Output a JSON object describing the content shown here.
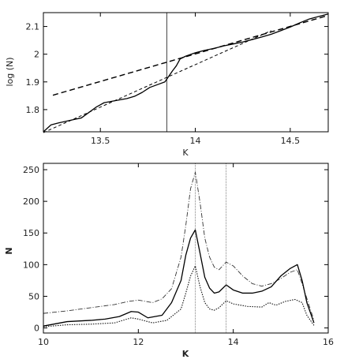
{
  "chart_data": [
    {
      "type": "line",
      "xlabel": "K",
      "ylabel": "log (N)",
      "xlim": [
        13.2,
        14.7
      ],
      "ylim": [
        1.72,
        2.15
      ],
      "x_ticks": [
        13.5,
        14,
        14.5
      ],
      "x_tick_labels": [
        "13.5",
        "14",
        "14.5"
      ],
      "y_ticks": [
        1.8,
        1.9,
        2.0,
        2.1
      ],
      "y_tick_labels": [
        "1.8",
        "1.9",
        "2",
        "2.1"
      ],
      "grid": false,
      "vertical_lines": [
        13.85
      ],
      "series": [
        {
          "style": "solid",
          "x": [
            13.2,
            13.24,
            13.28,
            13.32,
            13.36,
            13.4,
            13.44,
            13.48,
            13.52,
            13.56,
            13.6,
            13.64,
            13.68,
            13.72,
            13.76,
            13.8,
            13.84,
            13.86,
            13.88,
            13.9,
            13.92,
            13.95,
            14.0,
            14.05,
            14.1,
            14.15,
            14.2,
            14.25,
            14.3,
            14.35,
            14.4,
            14.45,
            14.5,
            14.55,
            14.6,
            14.65,
            14.7
          ],
          "values": [
            1.72,
            1.745,
            1.752,
            1.758,
            1.764,
            1.77,
            1.79,
            1.81,
            1.825,
            1.83,
            1.835,
            1.84,
            1.848,
            1.862,
            1.88,
            1.89,
            1.9,
            1.92,
            1.94,
            1.958,
            1.983,
            1.993,
            2.005,
            2.014,
            2.021,
            2.03,
            2.037,
            2.044,
            2.053,
            2.062,
            2.072,
            2.085,
            2.098,
            2.113,
            2.127,
            2.136,
            2.145
          ]
        },
        {
          "style": "long-dashed",
          "x": [
            13.25,
            14.7
          ],
          "values": [
            1.852,
            2.14
          ]
        },
        {
          "style": "short-dashed",
          "x": [
            13.2,
            14.4
          ],
          "values": [
            1.717,
            2.085
          ]
        }
      ]
    },
    {
      "type": "line",
      "xlabel": "K",
      "ylabel": "N",
      "xlim": [
        10,
        16
      ],
      "ylim": [
        -8,
        260
      ],
      "x_ticks": [
        10,
        12,
        14,
        16
      ],
      "x_tick_labels": [
        "10",
        "12",
        "14",
        "16"
      ],
      "y_ticks": [
        0,
        50,
        100,
        150,
        200,
        250
      ],
      "y_tick_labels": [
        "0",
        "50",
        "100",
        "150",
        "200",
        "250"
      ],
      "grid": false,
      "vertical_lines": [
        13.2,
        13.85
      ],
      "series": [
        {
          "style": "dash-dot",
          "x": [
            10,
            10.5,
            11,
            11.5,
            11.8,
            12,
            12.3,
            12.5,
            12.7,
            12.9,
            13.0,
            13.1,
            13.2,
            13.3,
            13.4,
            13.5,
            13.6,
            13.7,
            13.85,
            14.0,
            14.2,
            14.4,
            14.6,
            14.8,
            15.0,
            15.2,
            15.35,
            15.45,
            15.6,
            15.7
          ],
          "values": [
            23,
            27,
            32,
            37,
            42,
            44,
            40,
            46,
            62,
            112,
            162,
            220,
            246,
            198,
            142,
            112,
            96,
            92,
            104,
            98,
            82,
            70,
            66,
            70,
            78,
            88,
            92,
            70,
            35,
            12
          ]
        },
        {
          "style": "solid",
          "x": [
            10,
            10.5,
            11,
            11.3,
            11.6,
            11.85,
            12,
            12.2,
            12.5,
            12.7,
            12.9,
            13.0,
            13.1,
            13.2,
            13.3,
            13.4,
            13.5,
            13.6,
            13.7,
            13.85,
            14.0,
            14.2,
            14.4,
            14.6,
            14.8,
            15.0,
            15.2,
            15.35,
            15.45,
            15.55,
            15.7
          ],
          "values": [
            3,
            10,
            12,
            14,
            18,
            26,
            25,
            16,
            20,
            40,
            75,
            115,
            142,
            155,
            118,
            80,
            63,
            55,
            57,
            68,
            60,
            55,
            55,
            58,
            65,
            82,
            94,
            100,
            75,
            40,
            8
          ]
        },
        {
          "style": "dotted",
          "x": [
            10,
            10.5,
            11,
            11.5,
            11.85,
            12,
            12.3,
            12.6,
            12.9,
            13.0,
            13.1,
            13.2,
            13.3,
            13.4,
            13.5,
            13.6,
            13.7,
            13.85,
            14.0,
            14.3,
            14.6,
            14.75,
            14.9,
            15.1,
            15.3,
            15.45,
            15.55,
            15.7
          ],
          "values": [
            2,
            5,
            6,
            8,
            16,
            14,
            8,
            12,
            30,
            55,
            82,
            98,
            65,
            40,
            30,
            28,
            32,
            43,
            38,
            34,
            33,
            40,
            36,
            42,
            45,
            40,
            20,
            4
          ]
        }
      ]
    }
  ]
}
